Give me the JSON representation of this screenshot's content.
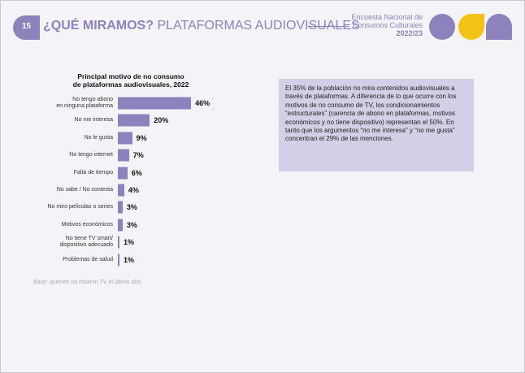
{
  "header": {
    "page_number": "15",
    "title_bold": "¿QUÉ MIRAMOS?",
    "title_rest": "PLATAFORMAS AUDIOVISUALES",
    "survey_lines": [
      "Encuesta Nacional de",
      "Consumos Culturales",
      "2022/23"
    ]
  },
  "chart_data": {
    "type": "bar",
    "orientation": "horizontal",
    "title": "Principal motivo de no consumo\nde plataformas audiovisuales, 2022",
    "color": "#8e82bd",
    "categories": [
      "No tengo abono\nen ninguna plataforma",
      "No me interesa",
      "No le gusta",
      "No tengo internet",
      "Falta de tiempo",
      "No sabe / No contesta",
      "No miro películas o series",
      "Motivos económicos",
      "No tiene TV smart/\ndispositivo adecuado",
      "Problemas de salud"
    ],
    "values": [
      46,
      20,
      9,
      7,
      6,
      4,
      3,
      3,
      1,
      1
    ],
    "value_labels": [
      "46%",
      "20%",
      "9%",
      "7%",
      "6%",
      "4%",
      "3%",
      "3%",
      "1%",
      "1%"
    ],
    "note": "Base: quienes no miraron TV el último año."
  },
  "text_box": "El 35% de la población no mira contenidos audiovisuales a través de plataformas. A diferencia de lo que ocurre con los motivos de no consumo de TV, los condicionamientos “estructurales” (carencia de abono en plataformas, motivos económicos y no tiene dispositivo) representan el 50%. En tanto que los argumentos “no me interesa” y “no me gusta” concentran el 29% de las menciones."
}
